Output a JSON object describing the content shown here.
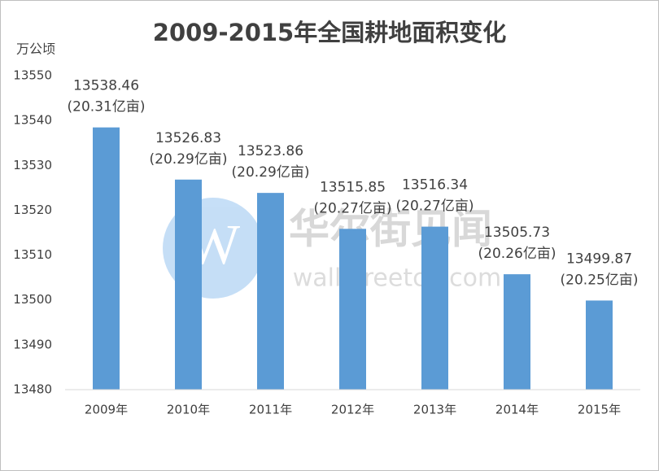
{
  "chart_data": {
    "type": "bar",
    "title": "2009-2015年全国耕地面积变化",
    "y_label": "万公顷",
    "categories": [
      "2009年",
      "2010年",
      "2011年",
      "2012年",
      "2013年",
      "2014年",
      "2015年"
    ],
    "values": [
      13538.46,
      13526.83,
      13523.86,
      13515.85,
      13516.34,
      13505.73,
      13499.87
    ],
    "annotations": [
      "(20.31亿亩)",
      "(20.29亿亩)",
      "(20.29亿亩)",
      "(20.27亿亩)",
      "(20.27亿亩)",
      "(20.26亿亩)",
      "(20.25亿亩)"
    ],
    "color": "#5b9bd5",
    "ylim": [
      13480,
      13550
    ],
    "yticks": [
      13480,
      13490,
      13500,
      13510,
      13520,
      13530,
      13540,
      13550
    ],
    "grid": false,
    "watermark": [
      "华尔街见闻",
      "wallstreetcn.com"
    ]
  }
}
